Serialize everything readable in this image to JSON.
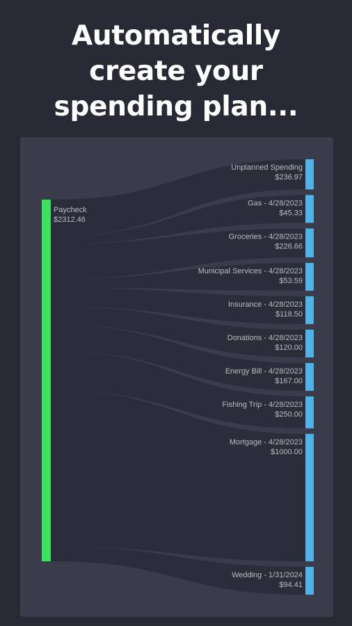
{
  "headline": {
    "line1": "Automatically",
    "line2": "create your",
    "line3": "spending plan..."
  },
  "colors": {
    "background": "#272934",
    "panel": "#3a3c4b",
    "flow": "#2a2c38",
    "source_node": "#3be35e",
    "target_node": "#4fb3ea",
    "label": "#b9bbc6"
  },
  "chart_data": {
    "type": "sankey",
    "source": {
      "label": "Paycheck",
      "value_label": "$2312.46",
      "value": 2312.46
    },
    "targets": [
      {
        "label": "Unplanned Spending",
        "value_label": "$236.97",
        "value": 236.97
      },
      {
        "label": "Gas - 4/28/2023",
        "value_label": "$45.33",
        "value": 45.33
      },
      {
        "label": "Groceries - 4/28/2023",
        "value_label": "$226.66",
        "value": 226.66
      },
      {
        "label": "Municipal Services - 4/28/2023",
        "value_label": "$53.59",
        "value": 53.59
      },
      {
        "label": "Insurance - 4/28/2023",
        "value_label": "$118.50",
        "value": 118.5
      },
      {
        "label": "Donations - 4/28/2023",
        "value_label": "$120.00",
        "value": 120.0
      },
      {
        "label": "Energy Bill - 4/28/2023",
        "value_label": "$167.00",
        "value": 167.0
      },
      {
        "label": "Fishing Trip - 4/28/2023",
        "value_label": "$250.00",
        "value": 250.0
      },
      {
        "label": "Mortgage - 4/28/2023",
        "value_label": "$1000.00",
        "value": 1000.0
      },
      {
        "label": "Wedding - 1/31/2024",
        "value_label": "$94.41",
        "value": 94.41
      }
    ]
  }
}
